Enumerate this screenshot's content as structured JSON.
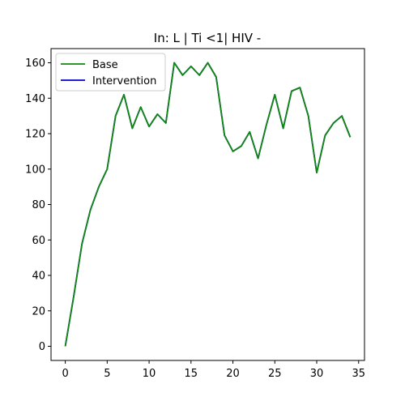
{
  "chart_data": {
    "type": "line",
    "title": "In: L | Ti <1| HIV -",
    "xlabel": "",
    "ylabel": "",
    "xlim": [
      -1.7,
      35.7
    ],
    "ylim": [
      -8,
      168
    ],
    "xticks": [
      0,
      5,
      10,
      15,
      20,
      25,
      30,
      35
    ],
    "yticks": [
      0,
      20,
      40,
      60,
      80,
      100,
      120,
      140,
      160
    ],
    "legend_position": "top-left",
    "x": [
      0,
      1,
      2,
      3,
      4,
      5,
      6,
      7,
      8,
      9,
      10,
      11,
      12,
      13,
      14,
      15,
      16,
      17,
      18,
      19,
      20,
      21,
      22,
      23,
      24,
      25,
      26,
      27,
      28,
      29,
      30,
      31,
      32,
      33,
      34
    ],
    "series": [
      {
        "name": "Intervention",
        "color": "#0000cc",
        "values": [
          0,
          28,
          58,
          77,
          90,
          100,
          130,
          142,
          123,
          135,
          124,
          131,
          126,
          160,
          153,
          158,
          153,
          160,
          152,
          119,
          110,
          113,
          121,
          106,
          125,
          142,
          123,
          144,
          146,
          130,
          98,
          119,
          126,
          130,
          118
        ]
      },
      {
        "name": "Base",
        "color": "#118811",
        "values": [
          0,
          28,
          58,
          77,
          90,
          100,
          130,
          142,
          123,
          135,
          124,
          131,
          126,
          160,
          153,
          158,
          153,
          160,
          152,
          119,
          110,
          113,
          121,
          106,
          125,
          142,
          123,
          144,
          146,
          130,
          98,
          119,
          126,
          130,
          118
        ]
      }
    ],
    "legend_order": [
      "Base",
      "Intervention"
    ]
  }
}
